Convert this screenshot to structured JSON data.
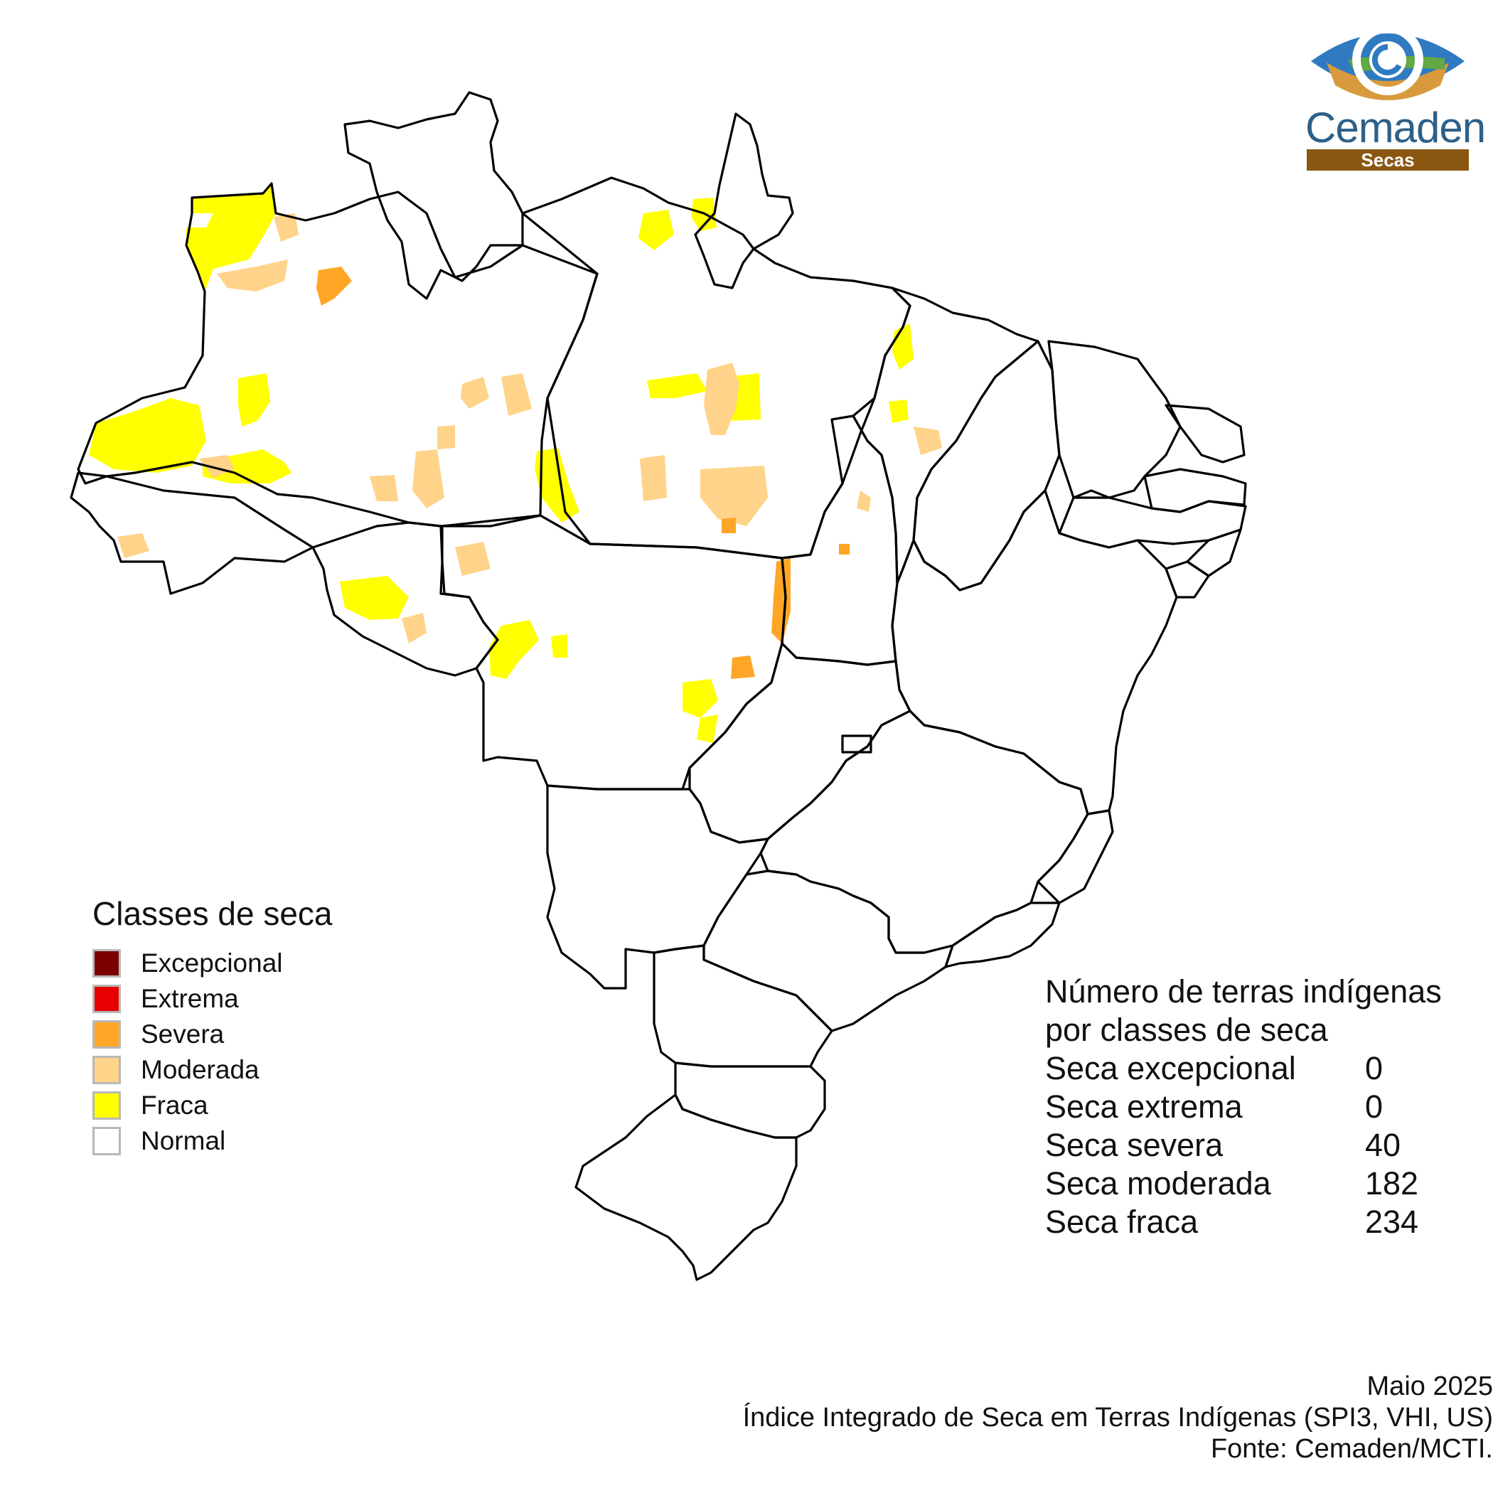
{
  "logo": {
    "name": "Cemaden",
    "subtitle": "Secas"
  },
  "legend": {
    "title": "Classes de seca",
    "classes": [
      {
        "label": "Excepcional",
        "color": "#7a0000"
      },
      {
        "label": "Extrema",
        "color": "#e60000"
      },
      {
        "label": "Severa",
        "color": "#ffa626"
      },
      {
        "label": "Moderada",
        "color": "#ffd389"
      },
      {
        "label": "Fraca",
        "color": "#ffff00"
      },
      {
        "label": "Normal",
        "color": "#ffffff"
      }
    ]
  },
  "stats": {
    "title_line1": "Número de terras indígenas",
    "title_line2": "por classes de seca",
    "rows": [
      {
        "label": "Seca excepcional",
        "count": "0"
      },
      {
        "label": "Seca extrema",
        "count": "0"
      },
      {
        "label": "Seca severa",
        "count": "40"
      },
      {
        "label": "Seca moderada",
        "count": "182"
      },
      {
        "label": "Seca fraca",
        "count": "234"
      }
    ]
  },
  "footer": {
    "date": "Maio 2025",
    "index": "Índice Integrado de Seca em Terras Indígenas (SPI3, VHI, US)",
    "source": "Fonte: Cemaden/MCTI."
  }
}
